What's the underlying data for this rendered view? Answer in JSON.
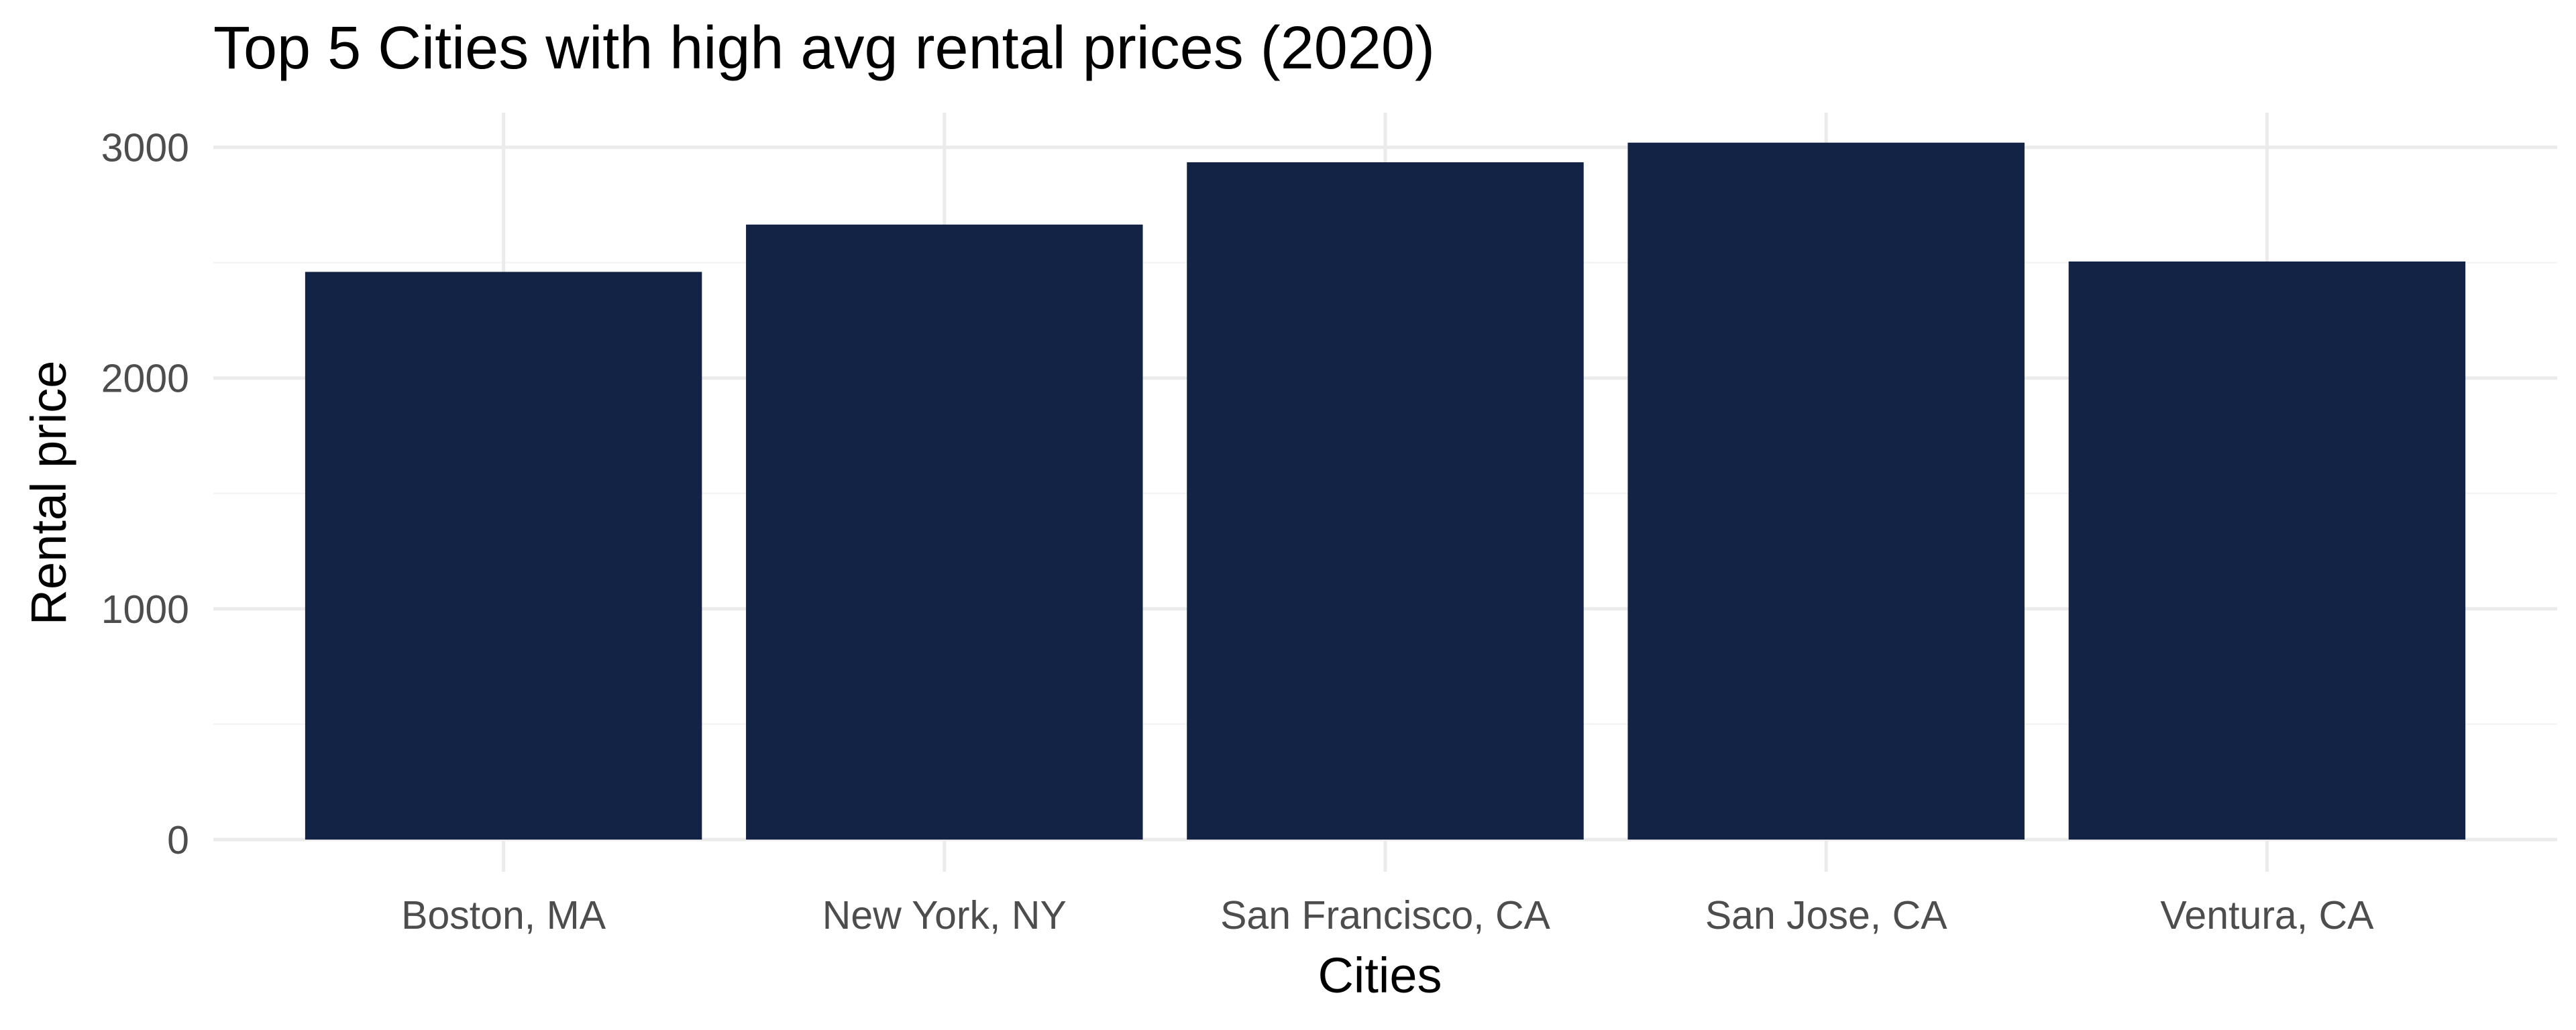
{
  "chart_data": {
    "type": "bar",
    "title": "Top 5 Cities with high avg rental prices (2020)",
    "xlabel": "Cities",
    "ylabel": "Rental price",
    "categories": [
      "Boston, MA",
      "New York, NY",
      "San Francisco, CA",
      "San Jose, CA",
      "Ventura, CA"
    ],
    "values": [
      2460,
      2665,
      2935,
      3020,
      2505
    ],
    "ylim": [
      0,
      3150
    ],
    "yticks": [
      0,
      1000,
      2000,
      3000
    ],
    "grid": true,
    "legend": "none",
    "colors": {
      "bar": "#132345",
      "grid": "#ebebeb",
      "tick_text": "#4d4d4d"
    }
  }
}
